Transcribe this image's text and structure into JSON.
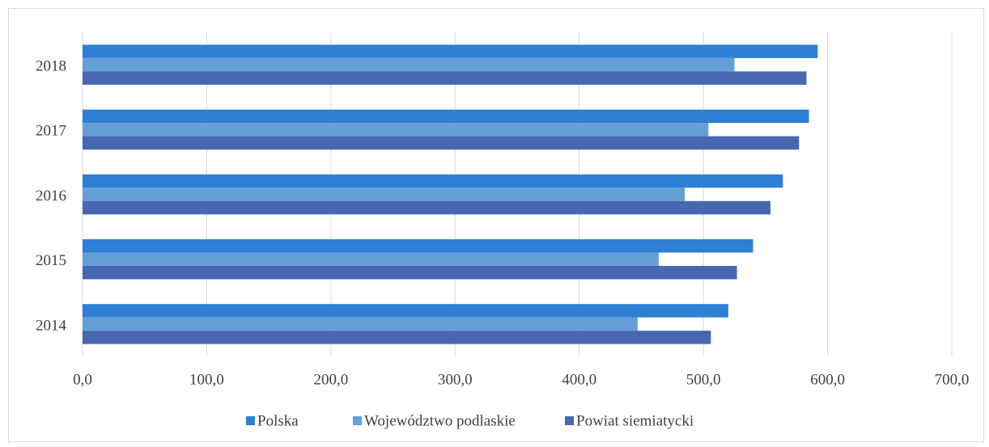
{
  "chart_data": {
    "type": "hbar",
    "categories": [
      "2018",
      "2017",
      "2016",
      "2015",
      "2014"
    ],
    "series": [
      {
        "name": "Polska",
        "color": "#2e7fd6",
        "values": [
          592,
          585,
          564,
          540,
          520
        ]
      },
      {
        "name": "Województwo podlaskie",
        "color": "#649fd8",
        "values": [
          525,
          504,
          485,
          464,
          447
        ]
      },
      {
        "name": "Powiat siemiatycki",
        "color": "#4767b0",
        "values": [
          583,
          577,
          554,
          527,
          506
        ]
      }
    ],
    "xlim": [
      0,
      700
    ],
    "xticks": [
      {
        "value": 0,
        "label": "0,0"
      },
      {
        "value": 100,
        "label": "100,0"
      },
      {
        "value": 200,
        "label": "200,0"
      },
      {
        "value": 300,
        "label": "300,0"
      },
      {
        "value": 400,
        "label": "400,0"
      },
      {
        "value": 500,
        "label": "500,0"
      },
      {
        "value": 600,
        "label": "600,0"
      },
      {
        "value": 700,
        "label": "700,0"
      }
    ],
    "grid": true,
    "legend": "bottom"
  }
}
